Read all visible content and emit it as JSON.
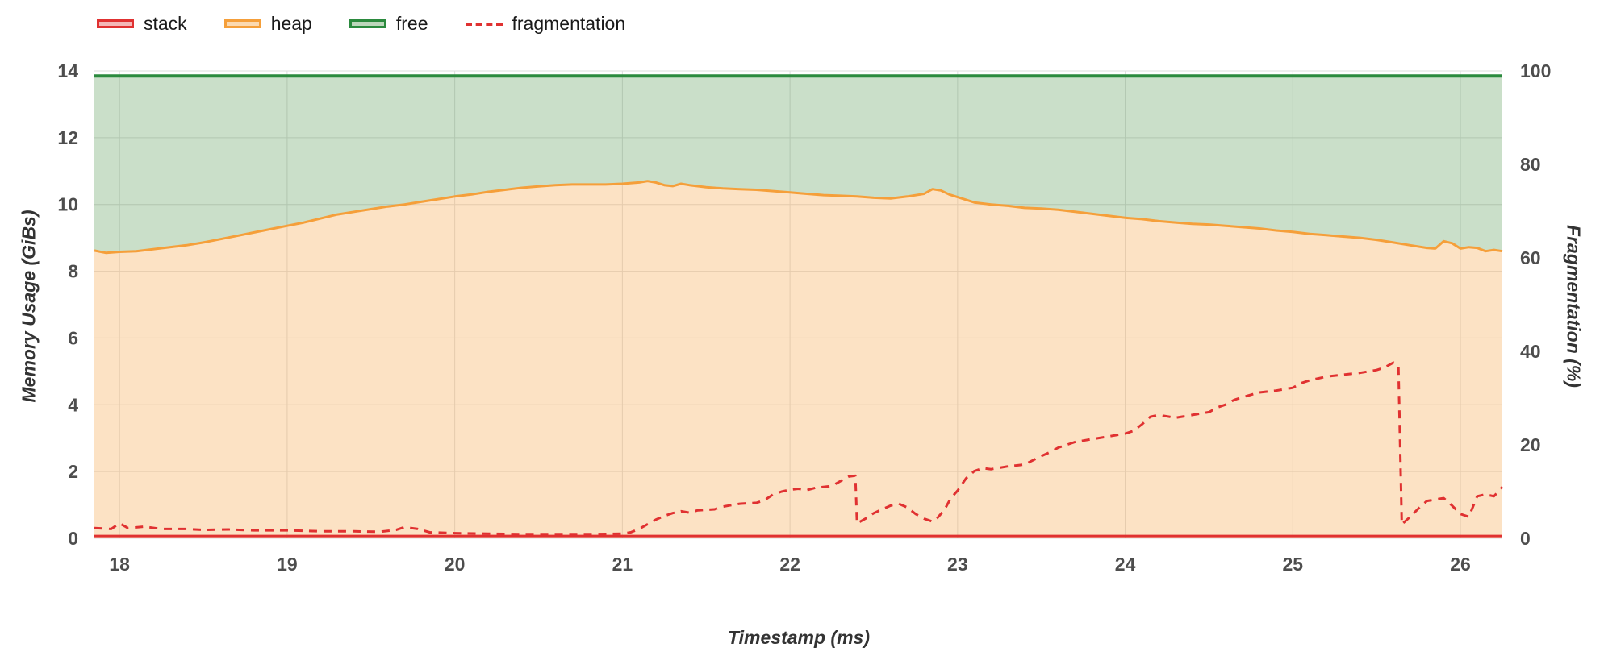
{
  "legend": {
    "items": [
      {
        "series": "stack",
        "label": "stack"
      },
      {
        "series": "heap",
        "label": "heap"
      },
      {
        "series": "free",
        "label": "free"
      },
      {
        "series": "fragmentation",
        "label": "fragmentation"
      }
    ]
  },
  "chart_data": {
    "type": "area",
    "title": "",
    "legend_position": "top-left",
    "grid": true,
    "axes": {
      "x": {
        "label": "Timestamp (ms)",
        "min": 17.85,
        "max": 26.25,
        "ticks": [
          18,
          19,
          20,
          21,
          22,
          23,
          24,
          25,
          26
        ]
      },
      "y_left": {
        "label": "Memory Usage (GiBs)",
        "min": 0,
        "max": 14,
        "ticks": [
          0,
          2,
          4,
          6,
          8,
          10,
          12,
          14
        ]
      },
      "y_right": {
        "label": "Fragmentation (%)",
        "min": 0,
        "max": 100,
        "ticks": [
          0,
          20,
          40,
          60,
          80,
          100
        ]
      }
    },
    "style": {
      "grid": "#dedede",
      "text": "#4d4d4d",
      "background": "#ffffff"
    },
    "series": [
      {
        "name": "free",
        "axis": "left",
        "color": "#2b8a3e",
        "width": 4,
        "legend_fill": "rgba(64,140,60,0.35)",
        "points": [
          [
            17.85,
            13.85
          ],
          [
            26.25,
            13.85
          ]
        ]
      },
      {
        "name": "heap",
        "axis": "left",
        "color": "#f59f3a",
        "width": 3,
        "legend_fill": "rgba(245,159,58,0.4)",
        "points": [
          [
            17.85,
            8.62
          ],
          [
            17.92,
            8.55
          ],
          [
            18.0,
            8.58
          ],
          [
            18.1,
            8.6
          ],
          [
            18.2,
            8.66
          ],
          [
            18.3,
            8.72
          ],
          [
            18.4,
            8.78
          ],
          [
            18.5,
            8.86
          ],
          [
            18.6,
            8.96
          ],
          [
            18.7,
            9.06
          ],
          [
            18.8,
            9.16
          ],
          [
            18.9,
            9.26
          ],
          [
            19.0,
            9.36
          ],
          [
            19.1,
            9.46
          ],
          [
            19.2,
            9.58
          ],
          [
            19.3,
            9.7
          ],
          [
            19.4,
            9.78
          ],
          [
            19.5,
            9.86
          ],
          [
            19.6,
            9.94
          ],
          [
            19.7,
            10.0
          ],
          [
            19.8,
            10.08
          ],
          [
            19.9,
            10.16
          ],
          [
            20.0,
            10.24
          ],
          [
            20.1,
            10.3
          ],
          [
            20.2,
            10.38
          ],
          [
            20.3,
            10.44
          ],
          [
            20.4,
            10.5
          ],
          [
            20.5,
            10.54
          ],
          [
            20.6,
            10.58
          ],
          [
            20.7,
            10.6
          ],
          [
            20.8,
            10.6
          ],
          [
            20.9,
            10.6
          ],
          [
            21.0,
            10.62
          ],
          [
            21.1,
            10.66
          ],
          [
            21.15,
            10.7
          ],
          [
            21.2,
            10.66
          ],
          [
            21.25,
            10.58
          ],
          [
            21.3,
            10.55
          ],
          [
            21.35,
            10.62
          ],
          [
            21.4,
            10.58
          ],
          [
            21.5,
            10.52
          ],
          [
            21.6,
            10.48
          ],
          [
            21.7,
            10.46
          ],
          [
            21.8,
            10.44
          ],
          [
            21.9,
            10.4
          ],
          [
            22.0,
            10.36
          ],
          [
            22.1,
            10.32
          ],
          [
            22.2,
            10.28
          ],
          [
            22.3,
            10.26
          ],
          [
            22.4,
            10.24
          ],
          [
            22.5,
            10.2
          ],
          [
            22.6,
            10.18
          ],
          [
            22.7,
            10.24
          ],
          [
            22.8,
            10.32
          ],
          [
            22.85,
            10.46
          ],
          [
            22.9,
            10.42
          ],
          [
            22.95,
            10.3
          ],
          [
            23.0,
            10.22
          ],
          [
            23.1,
            10.06
          ],
          [
            23.2,
            10.0
          ],
          [
            23.3,
            9.96
          ],
          [
            23.4,
            9.9
          ],
          [
            23.5,
            9.88
          ],
          [
            23.6,
            9.84
          ],
          [
            23.7,
            9.78
          ],
          [
            23.8,
            9.72
          ],
          [
            23.9,
            9.66
          ],
          [
            24.0,
            9.6
          ],
          [
            24.1,
            9.56
          ],
          [
            24.2,
            9.5
          ],
          [
            24.3,
            9.46
          ],
          [
            24.4,
            9.42
          ],
          [
            24.5,
            9.4
          ],
          [
            24.6,
            9.36
          ],
          [
            24.7,
            9.32
          ],
          [
            24.8,
            9.28
          ],
          [
            24.9,
            9.22
          ],
          [
            25.0,
            9.18
          ],
          [
            25.1,
            9.12
          ],
          [
            25.2,
            9.08
          ],
          [
            25.3,
            9.04
          ],
          [
            25.4,
            9.0
          ],
          [
            25.5,
            8.94
          ],
          [
            25.6,
            8.86
          ],
          [
            25.7,
            8.78
          ],
          [
            25.8,
            8.7
          ],
          [
            25.85,
            8.68
          ],
          [
            25.9,
            8.9
          ],
          [
            25.95,
            8.84
          ],
          [
            26.0,
            8.68
          ],
          [
            26.05,
            8.72
          ],
          [
            26.1,
            8.7
          ],
          [
            26.15,
            8.6
          ],
          [
            26.2,
            8.64
          ],
          [
            26.25,
            8.6
          ]
        ]
      },
      {
        "name": "stack",
        "axis": "left",
        "color": "#e03131",
        "width": 3,
        "legend_fill": "rgba(224,49,49,0.35)",
        "points": [
          [
            17.85,
            0.07
          ],
          [
            26.25,
            0.07
          ]
        ]
      },
      {
        "name": "fragmentation",
        "axis": "right",
        "color": "#e03131",
        "width": 3,
        "dash": "10 8",
        "points": [
          [
            17.85,
            2.2
          ],
          [
            17.95,
            2.0
          ],
          [
            18.0,
            3.2
          ],
          [
            18.05,
            2.2
          ],
          [
            18.15,
            2.5
          ],
          [
            18.25,
            2.0
          ],
          [
            18.4,
            2.0
          ],
          [
            18.5,
            1.8
          ],
          [
            18.65,
            1.9
          ],
          [
            18.8,
            1.7
          ],
          [
            19.0,
            1.7
          ],
          [
            19.2,
            1.5
          ],
          [
            19.4,
            1.5
          ],
          [
            19.55,
            1.4
          ],
          [
            19.65,
            1.8
          ],
          [
            19.7,
            2.4
          ],
          [
            19.78,
            2.0
          ],
          [
            19.85,
            1.3
          ],
          [
            20.0,
            1.1
          ],
          [
            20.2,
            1.0
          ],
          [
            20.4,
            0.9
          ],
          [
            20.6,
            0.9
          ],
          [
            20.8,
            0.9
          ],
          [
            21.0,
            1.0
          ],
          [
            21.05,
            1.3
          ],
          [
            21.1,
            2.0
          ],
          [
            21.15,
            3.0
          ],
          [
            21.2,
            4.0
          ],
          [
            21.25,
            4.8
          ],
          [
            21.3,
            5.4
          ],
          [
            21.35,
            5.8
          ],
          [
            21.4,
            5.5
          ],
          [
            21.45,
            6.0
          ],
          [
            21.55,
            6.2
          ],
          [
            21.6,
            6.8
          ],
          [
            21.7,
            7.4
          ],
          [
            21.8,
            7.6
          ],
          [
            21.85,
            8.2
          ],
          [
            21.9,
            9.4
          ],
          [
            21.95,
            10.0
          ],
          [
            22.0,
            10.4
          ],
          [
            22.05,
            10.6
          ],
          [
            22.1,
            10.3
          ],
          [
            22.15,
            10.8
          ],
          [
            22.25,
            11.2
          ],
          [
            22.3,
            12.2
          ],
          [
            22.35,
            13.2
          ],
          [
            22.39,
            13.4
          ],
          [
            22.4,
            3.2
          ],
          [
            22.45,
            4.2
          ],
          [
            22.5,
            5.4
          ],
          [
            22.55,
            6.2
          ],
          [
            22.6,
            7.0
          ],
          [
            22.65,
            7.4
          ],
          [
            22.7,
            6.6
          ],
          [
            22.75,
            5.2
          ],
          [
            22.8,
            4.2
          ],
          [
            22.85,
            3.6
          ],
          [
            22.88,
            4.4
          ],
          [
            22.92,
            6.0
          ],
          [
            22.96,
            8.6
          ],
          [
            23.0,
            10.2
          ],
          [
            23.05,
            12.8
          ],
          [
            23.1,
            14.4
          ],
          [
            23.15,
            15.0
          ],
          [
            23.2,
            14.8
          ],
          [
            23.3,
            15.4
          ],
          [
            23.4,
            15.8
          ],
          [
            23.5,
            17.6
          ],
          [
            23.55,
            18.4
          ],
          [
            23.6,
            19.4
          ],
          [
            23.7,
            20.6
          ],
          [
            23.8,
            21.2
          ],
          [
            23.9,
            21.8
          ],
          [
            24.0,
            22.4
          ],
          [
            24.05,
            23.0
          ],
          [
            24.1,
            24.4
          ],
          [
            24.15,
            26.0
          ],
          [
            24.2,
            26.4
          ],
          [
            24.3,
            25.8
          ],
          [
            24.4,
            26.4
          ],
          [
            24.5,
            27.0
          ],
          [
            24.55,
            28.0
          ],
          [
            24.6,
            28.6
          ],
          [
            24.65,
            29.6
          ],
          [
            24.7,
            30.2
          ],
          [
            24.8,
            31.2
          ],
          [
            24.9,
            31.6
          ],
          [
            25.0,
            32.2
          ],
          [
            25.05,
            33.2
          ],
          [
            25.1,
            33.8
          ],
          [
            25.2,
            34.6
          ],
          [
            25.3,
            35.0
          ],
          [
            25.4,
            35.4
          ],
          [
            25.5,
            36.0
          ],
          [
            25.55,
            36.6
          ],
          [
            25.6,
            37.6
          ],
          [
            25.63,
            36.8
          ],
          [
            25.65,
            3.0
          ],
          [
            25.7,
            4.6
          ],
          [
            25.75,
            6.4
          ],
          [
            25.8,
            8.0
          ],
          [
            25.9,
            8.6
          ],
          [
            25.95,
            7.0
          ],
          [
            26.0,
            5.2
          ],
          [
            26.05,
            4.6
          ],
          [
            26.1,
            9.0
          ],
          [
            26.15,
            9.4
          ],
          [
            26.2,
            9.0
          ],
          [
            26.25,
            11.0
          ]
        ]
      }
    ],
    "areas": [
      {
        "top": "free",
        "bottom": "heap",
        "fill": "rgba(64,140,60,0.28)"
      },
      {
        "top": "heap",
        "bottom": "baseline",
        "fill": "rgba(245,159,58,0.3)"
      }
    ]
  }
}
